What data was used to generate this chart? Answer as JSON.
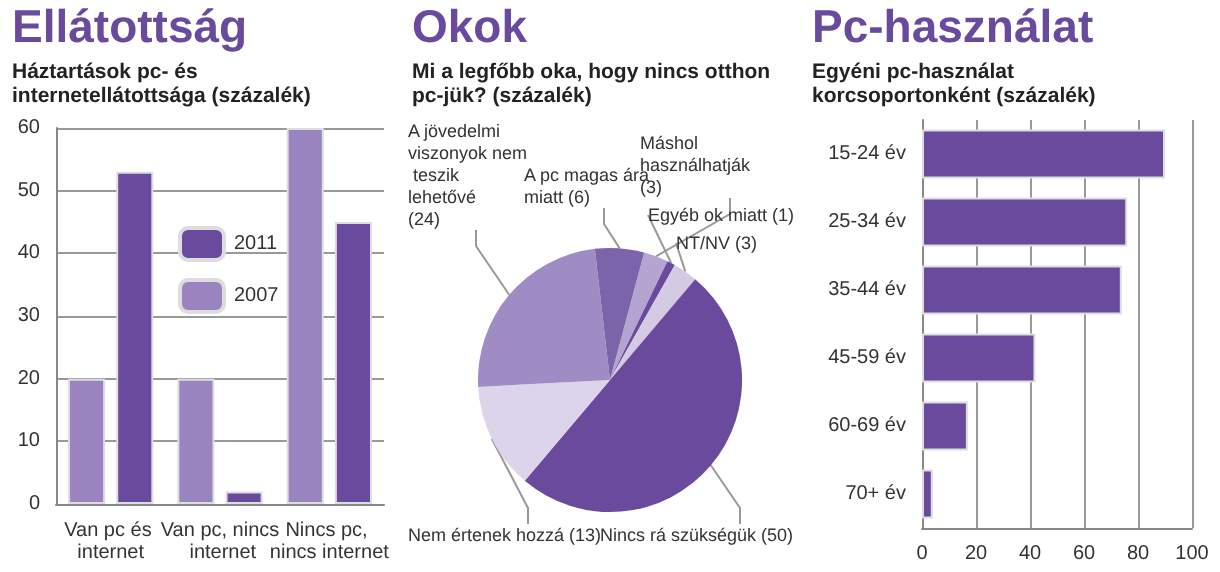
{
  "chart_data": [
    {
      "type": "bar",
      "title": "Ellátottság",
      "subtitle": "Háztartások pc- és internetellátottsága (százalék)",
      "categories": [
        "Van pc és internet",
        "Van pc, nincs internet",
        "Nincs pc, nincs internet"
      ],
      "series": [
        {
          "name": "2007",
          "color": "#9a84c0",
          "values": [
            20,
            20,
            60
          ]
        },
        {
          "name": "2011",
          "color": "#6a4a9c",
          "values": [
            53,
            2,
            45
          ]
        }
      ],
      "ylim": [
        0,
        60
      ],
      "yticks": [
        0,
        10,
        20,
        30,
        40,
        50,
        60
      ],
      "grid": "y",
      "legend": "top"
    },
    {
      "type": "pie",
      "title": "Okok",
      "subtitle": "Mi a legfőbb oka, hogy nincs otthon pc-jük? (százalék)",
      "categories": [
        "Máshol használhatják",
        "Egyéb ok miatt",
        "NT/NV",
        "Nincs rá szükségük",
        "Nem értenek hozzá",
        "A jövedelmi viszonyok nem teszik lehetővé",
        "A pc magas ára miatt"
      ],
      "values": [
        3,
        1,
        3,
        50,
        13,
        24,
        6
      ],
      "colors": [
        "#b4a4d0",
        "#6a4a9c",
        "#d4cae4",
        "#6a4a9c",
        "#dcd4ea",
        "#a08cc4",
        "#7c64aa"
      ],
      "value_labels": [
        "(3)",
        "(1)",
        "(3)",
        "(50)",
        "(13)",
        "(24)",
        "(6)"
      ]
    },
    {
      "type": "bar",
      "title": "Pc-használat",
      "subtitle": "Egyéni pc-használat korcsoportonként (százalék)",
      "orientation": "horizontal",
      "categories": [
        "15-24 év",
        "25-34 év",
        "35-44 év",
        "45-59 év",
        "60-69 év",
        "70+ év"
      ],
      "values": [
        90,
        76,
        74,
        42,
        17,
        4
      ],
      "color": "#6a4a9c",
      "xlim": [
        0,
        100
      ],
      "xticks": [
        0,
        20,
        40,
        60,
        80,
        100
      ],
      "grid": "x"
    }
  ]
}
